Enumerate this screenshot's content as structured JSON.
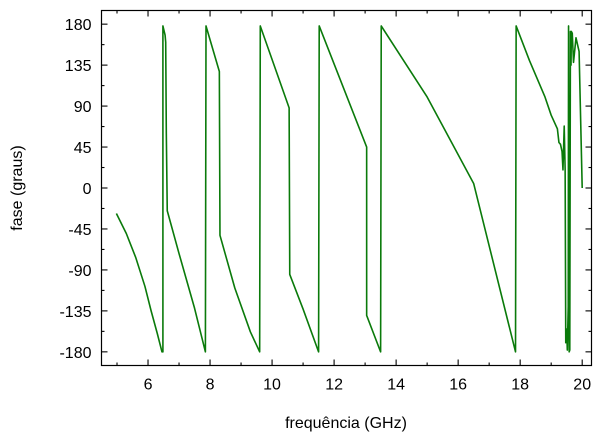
{
  "chart_data": {
    "type": "line",
    "title": "",
    "xlabel": "frequência (GHz)",
    "ylabel": "fase (graus)",
    "xlim": [
      4.5,
      20.3
    ],
    "ylim": [
      -195,
      195
    ],
    "x_ticks": [
      6,
      8,
      10,
      12,
      14,
      16,
      18,
      20
    ],
    "y_ticks": [
      180,
      135,
      90,
      45,
      0,
      -45,
      -90,
      -135,
      -180
    ],
    "x_tick_labels": [
      "6",
      "8",
      "10",
      "12",
      "14",
      "16",
      "18",
      "20"
    ],
    "y_tick_labels": [
      "180",
      "135",
      "90",
      "45",
      "0",
      "-45",
      "-90",
      "-135",
      "-180"
    ],
    "grid": false,
    "legend": "none",
    "line_color": "#0a7a0a",
    "series": [
      {
        "x": [
          4.98,
          5.3,
          5.6,
          5.9,
          6.1,
          6.3,
          6.45,
          6.48,
          6.48,
          6.55,
          6.57,
          6.59,
          6.62,
          7.0,
          7.5,
          7.85,
          7.87,
          8.3,
          8.32,
          8.8,
          9.3,
          9.6,
          9.62,
          10.55,
          10.57,
          11.0,
          11.5,
          11.52,
          13.05,
          13.05,
          13.5,
          13.52,
          15.0,
          16.5,
          17.85,
          17.87,
          18.3,
          18.8,
          19.0,
          19.2,
          19.25,
          19.3,
          19.35,
          19.38,
          19.42,
          19.45,
          19.47,
          19.5,
          19.52,
          19.55,
          19.56,
          19.58,
          19.6,
          19.62,
          19.64,
          19.65,
          19.68,
          19.72,
          19.8,
          19.9,
          20.0
        ],
        "y": [
          -28,
          -50,
          -76,
          -108,
          -135,
          -160,
          -180,
          -180,
          178,
          168,
          160,
          60,
          -25,
          -72,
          -132,
          -180,
          178,
          128,
          -52,
          -110,
          -158,
          -180,
          178,
          88,
          -95,
          -133,
          -180,
          178,
          45,
          -140,
          -180,
          178,
          100,
          5,
          -180,
          178,
          140,
          100,
          80,
          65,
          50,
          48,
          40,
          20,
          68,
          20,
          -170,
          -155,
          -178,
          -130,
          178,
          -180,
          -178,
          172,
          135,
          172,
          170,
          138,
          165,
          150,
          0
        ]
      }
    ]
  }
}
